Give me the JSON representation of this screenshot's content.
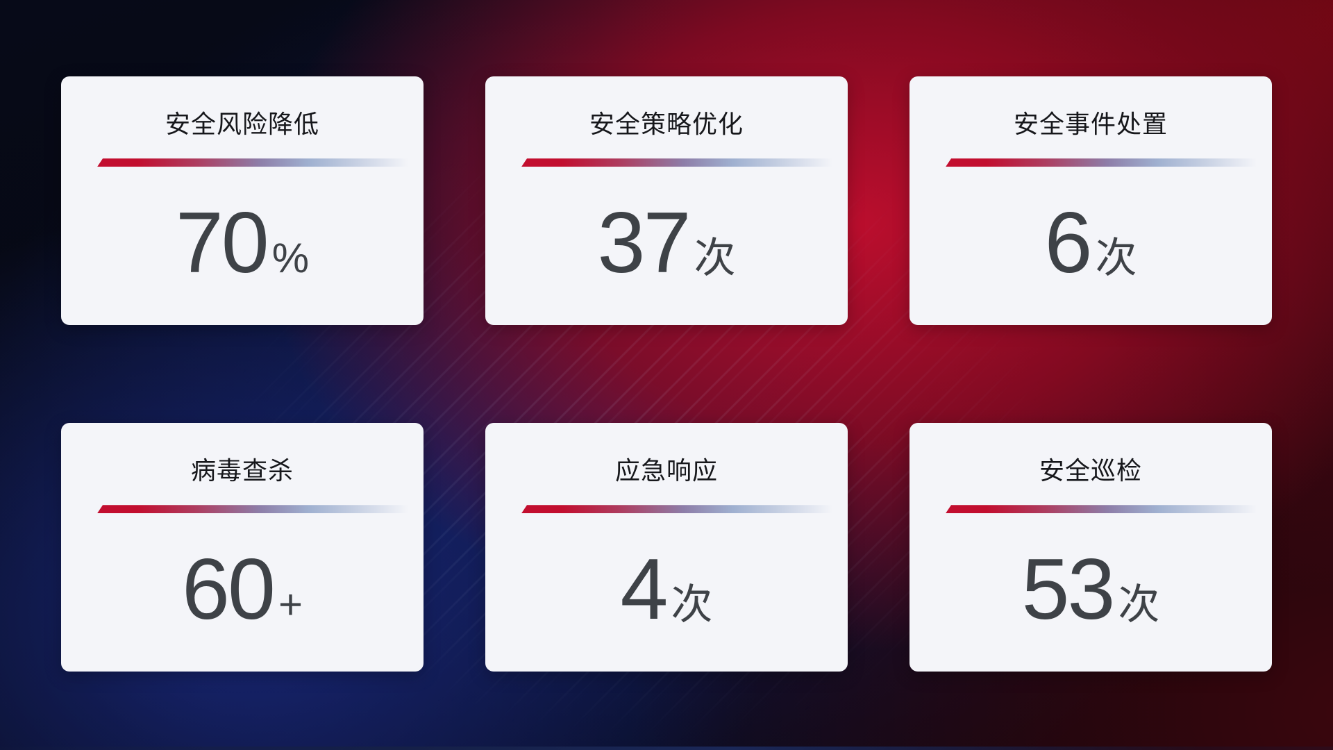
{
  "dashboard": {
    "cards": [
      {
        "title": "安全风险降低",
        "value": "70",
        "unit": "%"
      },
      {
        "title": "安全策略优化",
        "value": "37",
        "unit": "次"
      },
      {
        "title": "安全事件处置",
        "value": "6",
        "unit": "次"
      },
      {
        "title": "病毒查杀",
        "value": "60",
        "unit": "+"
      },
      {
        "title": "应急响应",
        "value": "4",
        "unit": "次"
      },
      {
        "title": "安全巡检",
        "value": "53",
        "unit": "次"
      }
    ],
    "colors": {
      "card_background": "#f4f5f9",
      "title_text": "#16171b",
      "value_text": "#3e4247",
      "divider_start": "#c20e2f",
      "divider_mid": "#8d7da8",
      "divider_end": "#c3cde1",
      "background_blue": "#1a2a82",
      "background_red": "#a50f2d",
      "background_dark": "#05060d"
    }
  }
}
